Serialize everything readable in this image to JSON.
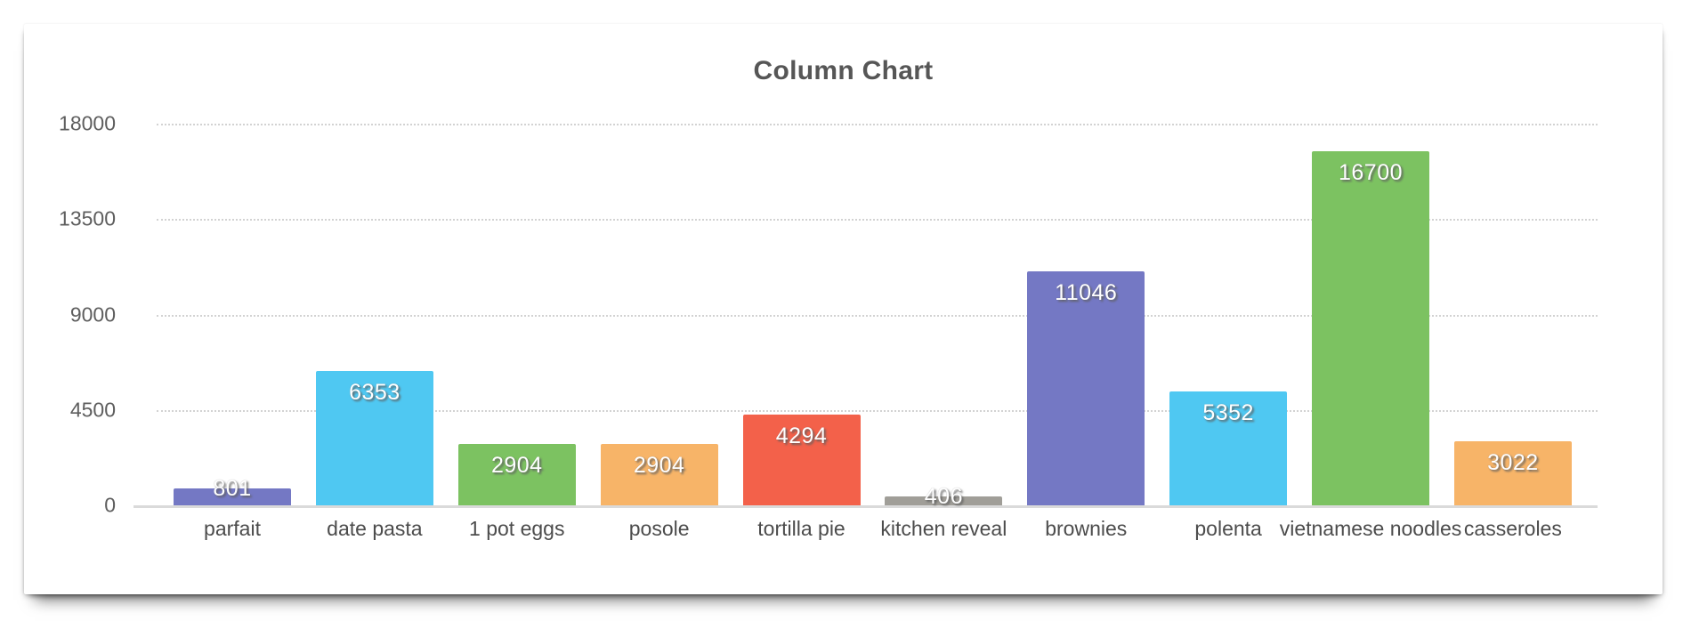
{
  "page": {
    "background_color": "#ffffff"
  },
  "card": {
    "background_color": "#ffffff"
  },
  "chart_data": {
    "type": "bar",
    "title": "Column Chart",
    "categories": [
      "parfait",
      "date pasta",
      "1 pot eggs",
      "posole",
      "tortilla pie",
      "kitchen reveal",
      "brownies",
      "polenta",
      "vietnamese noodles",
      "casseroles"
    ],
    "values": [
      801,
      6353,
      2904,
      2904,
      4294,
      406,
      11046,
      5352,
      16700,
      3022
    ],
    "bar_colors": [
      "#7478c4",
      "#4fc8f2",
      "#7cc261",
      "#f7b468",
      "#f3614a",
      "#a09e98",
      "#7478c4",
      "#4fc8f2",
      "#7cc261",
      "#f7b468"
    ],
    "value_labels": [
      "801",
      "6353",
      "2904",
      "2904",
      "4294",
      "406",
      "11046",
      "5352",
      "16700",
      "3022"
    ],
    "y_ticks": [
      0,
      4500,
      9000,
      13500,
      18000
    ],
    "ylim": [
      0,
      18000
    ],
    "xlabel": "",
    "ylabel": "",
    "grid": "horizontal dotted",
    "legend": "none"
  },
  "style": {
    "grid_color": "#d2d2d2",
    "axis_line_color": "#dadada",
    "tick_text_color": "#5e5e5e",
    "category_text_color": "#4c4c4c",
    "title_color": "#565656",
    "value_label_color": "#ffffff"
  }
}
